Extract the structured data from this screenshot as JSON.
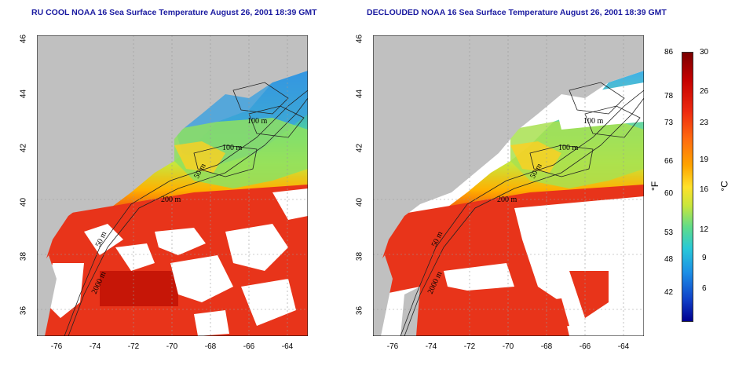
{
  "titles": {
    "left": "RU COOL NOAA 16 Sea Surface Temperature August 26, 2001 18:39 GMT",
    "right": "DECLOUDED NOAA 16 Sea Surface Temperature August 26, 2001 18:39 GMT"
  },
  "axes": {
    "x_ticks": [
      "-76",
      "-74",
      "-72",
      "-70",
      "-68",
      "-66",
      "-64"
    ],
    "y_ticks": [
      "46",
      "44",
      "42",
      "40",
      "38",
      "36"
    ]
  },
  "isobath_labels": [
    "100 m",
    "100 m",
    "50 m",
    "200 m",
    "50 m",
    "2000 m"
  ],
  "colorbar": {
    "fahrenheit_ticks": [
      "86",
      "78",
      "73",
      "66",
      "60",
      "53",
      "48",
      "42"
    ],
    "celsius_ticks": [
      "30",
      "26",
      "23",
      "19",
      "16",
      "12",
      "9",
      "6"
    ],
    "fahrenheit_unit": "°F",
    "celsius_unit": "°C"
  },
  "colors": {
    "land": "#c0c0c0",
    "cloud": "#ffffff",
    "warm": "#e8301a",
    "hot": "#b80000",
    "mid": "#ffb000",
    "cool": "#60d880",
    "cold": "#1e8ee6"
  }
}
